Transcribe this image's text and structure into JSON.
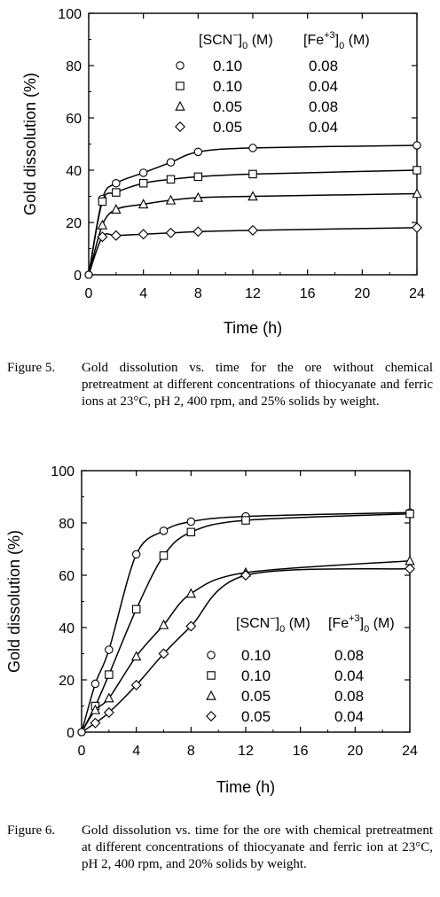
{
  "chart_data": [
    {
      "type": "scatter",
      "xlabel": "Time (h)",
      "ylabel": "Gold dissolution (%)",
      "xlim": [
        0,
        24
      ],
      "ylim": [
        0,
        100
      ],
      "xticks": [
        "0",
        "4",
        "8",
        "12",
        "16",
        "20",
        "24"
      ],
      "yticks": [
        "0",
        "20",
        "40",
        "60",
        "80",
        "100"
      ],
      "legend": {
        "col1_label": "[SCN",
        "col1_sup": "−",
        "col1_sub": "0",
        "col1_unit": " (M)",
        "col2_label": "[Fe",
        "col2_sup": "+3",
        "col2_sub": "0",
        "col2_unit": " (M)",
        "placement": "top-center"
      },
      "series": [
        {
          "marker": "circle",
          "scn": "0.10",
          "fe": "0.08",
          "x": [
            0,
            1,
            2,
            4,
            6,
            8,
            12,
            24
          ],
          "y": [
            0,
            29,
            35,
            39,
            43,
            47,
            48.5,
            49.5
          ]
        },
        {
          "marker": "square",
          "scn": "0.10",
          "fe": "0.04",
          "x": [
            0,
            1,
            2,
            4,
            6,
            8,
            12,
            24
          ],
          "y": [
            0,
            28,
            31.5,
            35,
            36.5,
            37.5,
            38.5,
            40
          ]
        },
        {
          "marker": "triangle",
          "scn": "0.05",
          "fe": "0.08",
          "x": [
            0,
            1,
            2,
            4,
            6,
            8,
            12,
            24
          ],
          "y": [
            0,
            19,
            25,
            27,
            28.5,
            29.5,
            30,
            31
          ]
        },
        {
          "marker": "diamond",
          "scn": "0.05",
          "fe": "0.04",
          "x": [
            0,
            1,
            2,
            4,
            6,
            8,
            12,
            24
          ],
          "y": [
            0,
            14.5,
            15,
            15.5,
            16,
            16.5,
            17,
            18
          ]
        }
      ],
      "caption_number": "Figure 5.",
      "caption_text": "Gold dissolution vs. time for the ore without chemical pretreatment at different concentrations of thiocyanate and ferric ions at 23°C, pH 2, 400 rpm, and 25% solids by weight."
    },
    {
      "type": "scatter",
      "xlabel": "Time (h)",
      "ylabel": "Gold dissolution (%)",
      "xlim": [
        0,
        24
      ],
      "ylim": [
        0,
        100
      ],
      "xticks": [
        "0",
        "4",
        "8",
        "12",
        "16",
        "20",
        "24"
      ],
      "yticks": [
        "0",
        "20",
        "40",
        "60",
        "80",
        "100"
      ],
      "legend": {
        "col1_label": "[SCN",
        "col1_sup": "−",
        "col1_sub": "0",
        "col1_unit": " (M)",
        "col2_label": "[Fe",
        "col2_sup": "+3",
        "col2_sub": "0",
        "col2_unit": " (M)",
        "placement": "lower-right"
      },
      "series": [
        {
          "marker": "circle",
          "scn": "0.10",
          "fe": "0.08",
          "x": [
            0,
            1,
            2,
            4,
            6,
            8,
            12,
            24
          ],
          "y": [
            0,
            18.5,
            31.5,
            68,
            77,
            80.5,
            82.5,
            84
          ]
        },
        {
          "marker": "square",
          "scn": "0.10",
          "fe": "0.04",
          "x": [
            0,
            1,
            2,
            4,
            6,
            8,
            12,
            24
          ],
          "y": [
            0,
            10,
            22,
            47,
            67.5,
            76.5,
            81,
            83.5
          ]
        },
        {
          "marker": "triangle",
          "scn": "0.05",
          "fe": "0.08",
          "x": [
            0,
            1,
            2,
            4,
            6,
            8,
            12,
            24
          ],
          "y": [
            0,
            8.5,
            13,
            29,
            41,
            53,
            61,
            65.5
          ]
        },
        {
          "marker": "diamond",
          "scn": "0.05",
          "fe": "0.04",
          "x": [
            0,
            1,
            2,
            4,
            6,
            8,
            12,
            24
          ],
          "y": [
            0,
            3.5,
            7.5,
            18,
            30,
            40.5,
            60,
            62.5
          ]
        }
      ],
      "caption_number": "Figure 6.",
      "caption_text": "Gold dissolution vs. time for the ore with chemical pretreatment at different concentrations of thiocyanate and ferric ion at 23°C, pH 2, 400 rpm, and 20% solids by weight."
    }
  ]
}
